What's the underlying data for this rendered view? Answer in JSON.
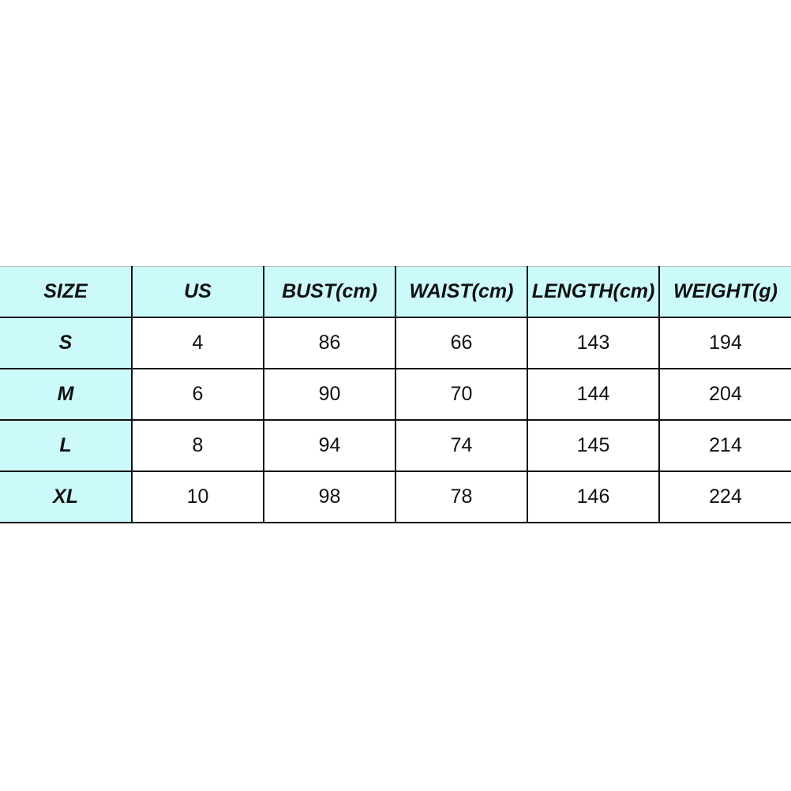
{
  "table": {
    "header_color": "#ccfafa",
    "headers": [
      "SIZE",
      "US",
      "BUST(cm)",
      "WAIST(cm)",
      "LENGTH(cm)",
      "WEIGHT(g)"
    ],
    "rows": [
      [
        "S",
        "4",
        "86",
        "66",
        "143",
        "194"
      ],
      [
        "M",
        "6",
        "90",
        "70",
        "144",
        "204"
      ],
      [
        "L",
        "8",
        "94",
        "74",
        "145",
        "214"
      ],
      [
        "XL",
        "10",
        "98",
        "78",
        "146",
        "224"
      ]
    ]
  }
}
